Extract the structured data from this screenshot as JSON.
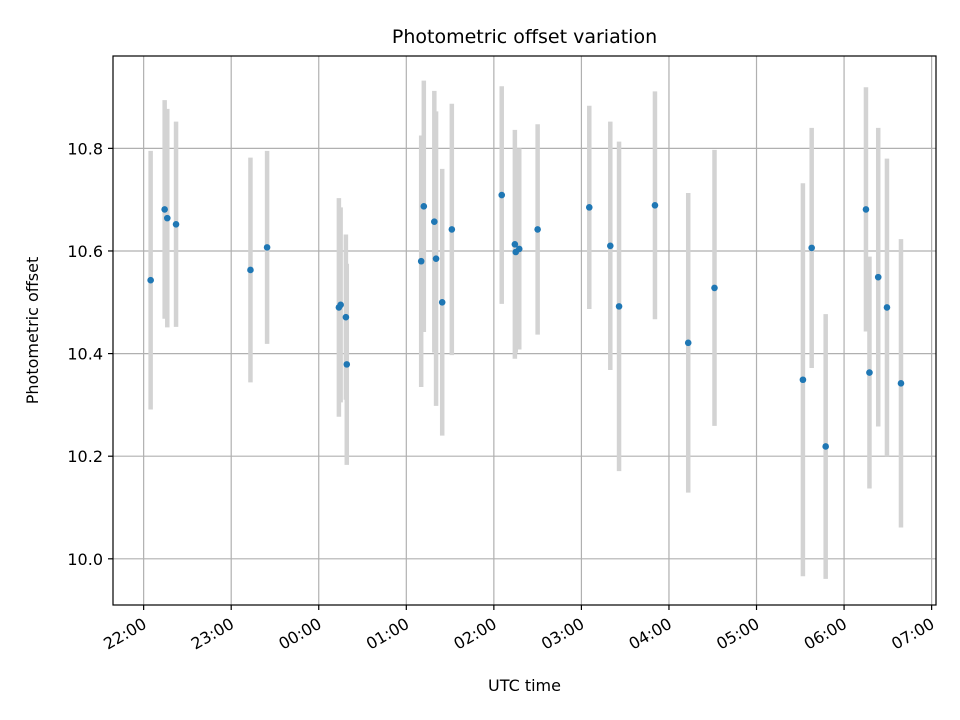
{
  "chart_data": {
    "type": "scatter",
    "title": "Photometric offset variation",
    "xlabel": "UTC time",
    "ylabel": "Photometric offset",
    "grid": true,
    "x_unit": "hours",
    "xlim": [
      21.65,
      31.05
    ],
    "ylim": [
      9.91,
      10.98
    ],
    "x_ticks": [
      {
        "value": 22,
        "label": "22:00"
      },
      {
        "value": 23,
        "label": "23:00"
      },
      {
        "value": 24,
        "label": "00:00"
      },
      {
        "value": 25,
        "label": "01:00"
      },
      {
        "value": 26,
        "label": "02:00"
      },
      {
        "value": 27,
        "label": "03:00"
      },
      {
        "value": 28,
        "label": "04:00"
      },
      {
        "value": 29,
        "label": "05:00"
      },
      {
        "value": 30,
        "label": "06:00"
      },
      {
        "value": 31,
        "label": "07:00"
      }
    ],
    "y_ticks": [
      {
        "value": 10.0,
        "label": "10.0"
      },
      {
        "value": 10.2,
        "label": "10.2"
      },
      {
        "value": 10.4,
        "label": "10.4"
      },
      {
        "value": 10.6,
        "label": "10.6"
      },
      {
        "value": 10.8,
        "label": "10.8"
      }
    ],
    "colors": {
      "points": "#1f77b4",
      "errorbars": "#d3d3d3",
      "grid": "#b0b0b0"
    },
    "points": [
      {
        "x": 22.08,
        "y": 10.543,
        "err": 0.252
      },
      {
        "x": 22.24,
        "y": 10.681,
        "err": 0.213
      },
      {
        "x": 22.27,
        "y": 10.664,
        "err": 0.213
      },
      {
        "x": 22.37,
        "y": 10.652,
        "err": 0.2
      },
      {
        "x": 23.22,
        "y": 10.563,
        "err": 0.219
      },
      {
        "x": 23.41,
        "y": 10.607,
        "err": 0.188
      },
      {
        "x": 24.23,
        "y": 10.49,
        "err": 0.213
      },
      {
        "x": 24.25,
        "y": 10.495,
        "err": 0.19
      },
      {
        "x": 24.31,
        "y": 10.471,
        "err": 0.161
      },
      {
        "x": 24.32,
        "y": 10.379,
        "err": 0.196
      },
      {
        "x": 25.17,
        "y": 10.58,
        "err": 0.245
      },
      {
        "x": 25.2,
        "y": 10.687,
        "err": 0.245
      },
      {
        "x": 25.32,
        "y": 10.657,
        "err": 0.255
      },
      {
        "x": 25.34,
        "y": 10.585,
        "err": 0.287
      },
      {
        "x": 25.41,
        "y": 10.5,
        "err": 0.26
      },
      {
        "x": 25.52,
        "y": 10.642,
        "err": 0.245
      },
      {
        "x": 26.09,
        "y": 10.709,
        "err": 0.212
      },
      {
        "x": 26.24,
        "y": 10.613,
        "err": 0.223
      },
      {
        "x": 26.25,
        "y": 10.598,
        "err": 0.196
      },
      {
        "x": 26.29,
        "y": 10.604,
        "err": 0.196
      },
      {
        "x": 26.5,
        "y": 10.642,
        "err": 0.205
      },
      {
        "x": 27.09,
        "y": 10.685,
        "err": 0.198
      },
      {
        "x": 27.33,
        "y": 10.61,
        "err": 0.242
      },
      {
        "x": 27.43,
        "y": 10.492,
        "err": 0.321
      },
      {
        "x": 27.84,
        "y": 10.689,
        "err": 0.222
      },
      {
        "x": 28.22,
        "y": 10.421,
        "err": 0.292
      },
      {
        "x": 28.52,
        "y": 10.528,
        "err": 0.269
      },
      {
        "x": 29.53,
        "y": 10.349,
        "err": 0.383
      },
      {
        "x": 29.63,
        "y": 10.606,
        "err": 0.234
      },
      {
        "x": 29.79,
        "y": 10.219,
        "err": 0.258
      },
      {
        "x": 30.25,
        "y": 10.681,
        "err": 0.238
      },
      {
        "x": 30.29,
        "y": 10.363,
        "err": 0.226
      },
      {
        "x": 30.39,
        "y": 10.549,
        "err": 0.291
      },
      {
        "x": 30.49,
        "y": 10.49,
        "err": 0.29
      },
      {
        "x": 30.65,
        "y": 10.342,
        "err": 0.281
      }
    ]
  }
}
